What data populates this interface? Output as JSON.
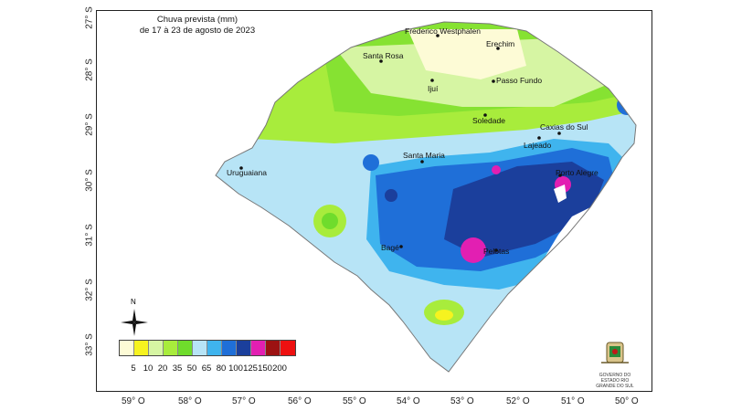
{
  "title": {
    "line1": "Chuva prevista (mm)",
    "line2": "de 17 à 23 de agosto de 2023"
  },
  "axes": {
    "lat_ticks": [
      "27° S",
      "28° S",
      "29° S",
      "30° S",
      "31° S",
      "32° S",
      "33° S"
    ],
    "lon_ticks": [
      "59° O",
      "58° O",
      "57° O",
      "56° O",
      "55° O",
      "54° O",
      "53° O",
      "52° O",
      "51° O",
      "50° O"
    ]
  },
  "cities": [
    {
      "name": "Frederico Westphalen"
    },
    {
      "name": "Erechim"
    },
    {
      "name": "Santa Rosa"
    },
    {
      "name": "Ijuí"
    },
    {
      "name": "Passo Fundo"
    },
    {
      "name": "Soledade"
    },
    {
      "name": "Caxias do Sul"
    },
    {
      "name": "Lajeado"
    },
    {
      "name": "Santa Maria"
    },
    {
      "name": "Uruguaiana"
    },
    {
      "name": "Porto Alegre"
    },
    {
      "name": "Bagé"
    },
    {
      "name": "Pelotas"
    }
  ],
  "legend": {
    "labels": [
      "5",
      "10",
      "20",
      "35",
      "50",
      "65",
      "80",
      "100",
      "125",
      "150",
      "200"
    ],
    "colors": [
      "#fdfbd6",
      "#f6f31f",
      "#d6f5a3",
      "#a8ec3c",
      "#6fdc2c",
      "#b7e4f6",
      "#3fb4ee",
      "#1f6fd8",
      "#1b3f9c",
      "#e21fb2",
      "#9c1212",
      "#ee1010"
    ]
  },
  "compass": {
    "north_label": "N"
  },
  "logo": {
    "text": "GOVERNO DO ESTADO RIO GRANDE DO SUL"
  }
}
